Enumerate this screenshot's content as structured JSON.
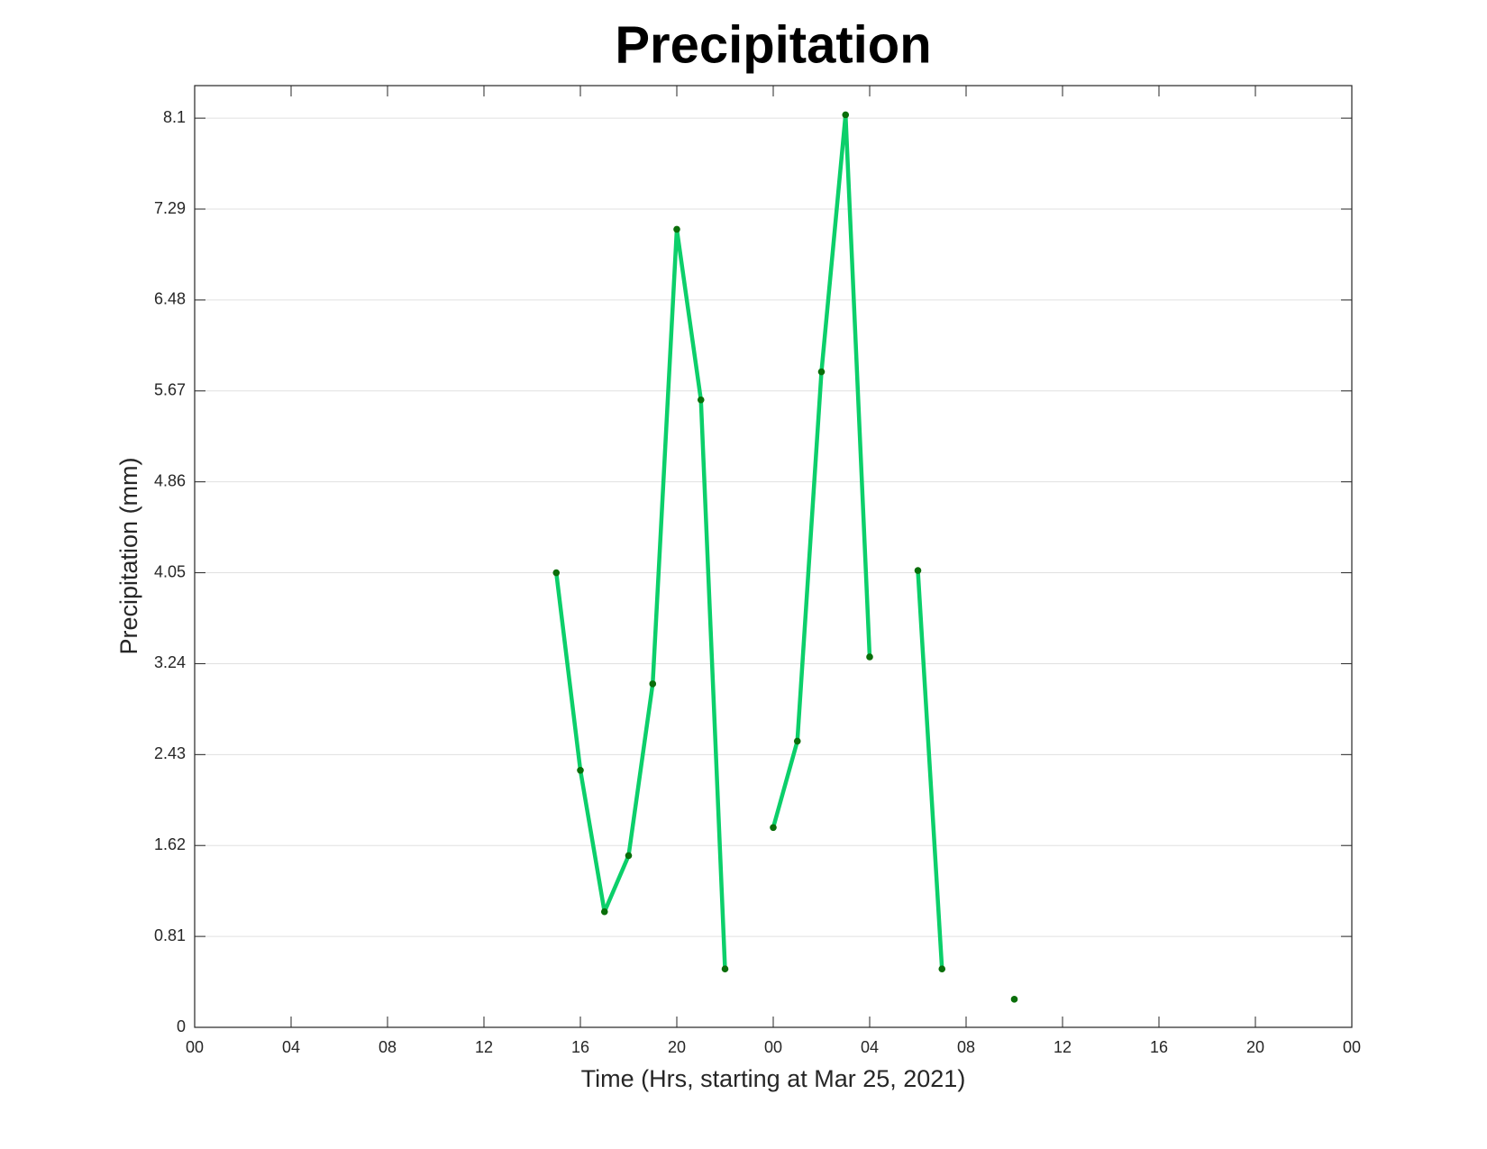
{
  "chart_data": {
    "type": "line",
    "title": "Precipitation",
    "x_label": "Time (Hrs, starting at Mar 25, 2021)",
    "y_label": "Precipitation (mm)",
    "x": [
      15,
      16,
      17,
      18,
      19,
      20,
      21,
      22,
      23,
      24,
      25,
      26,
      27,
      28,
      29,
      30,
      31,
      32,
      33,
      34
    ],
    "values": [
      4.05,
      2.29,
      1.03,
      1.53,
      3.06,
      7.11,
      5.59,
      0.52,
      null,
      1.78,
      2.55,
      5.84,
      8.13,
      3.3,
      null,
      4.07,
      0.52,
      null,
      null,
      0.25
    ],
    "color": "#0ccf6a",
    "marker_color": "#0a6e0a",
    "xlim": [
      0,
      48
    ],
    "xticks": [
      {
        "value": 0,
        "label": "00"
      },
      {
        "value": 4,
        "label": "04"
      },
      {
        "value": 8,
        "label": "08"
      },
      {
        "value": 12,
        "label": "12"
      },
      {
        "value": 16,
        "label": "16"
      },
      {
        "value": 20,
        "label": "20"
      },
      {
        "value": 24,
        "label": "00"
      },
      {
        "value": 28,
        "label": "04"
      },
      {
        "value": 32,
        "label": "08"
      },
      {
        "value": 36,
        "label": "12"
      },
      {
        "value": 40,
        "label": "16"
      },
      {
        "value": 44,
        "label": "20"
      },
      {
        "value": 48,
        "label": "00"
      }
    ],
    "ylim": [
      0,
      8.39
    ],
    "yticks": [
      0,
      0.81,
      1.62,
      2.43,
      3.24,
      4.05,
      4.86,
      5.67,
      6.48,
      7.29,
      8.1
    ],
    "grid": "y"
  }
}
